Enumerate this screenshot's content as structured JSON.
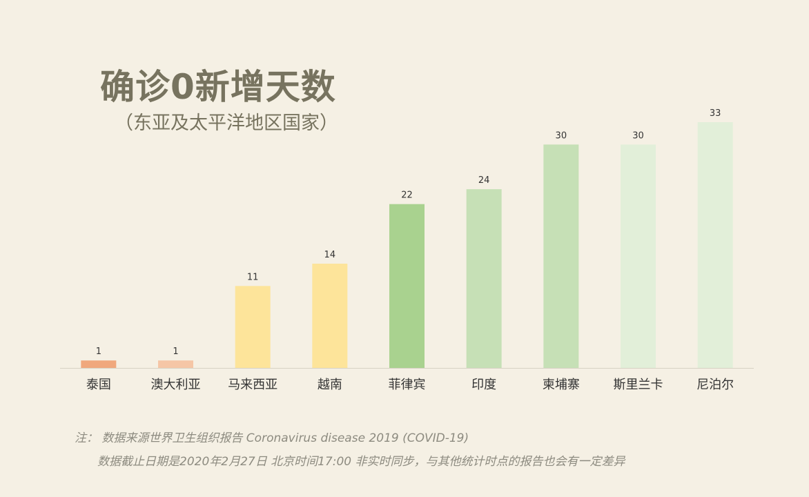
{
  "title": "确诊0新增天数",
  "subtitle": "（东亚及太平洋地区国家）",
  "chart_data": {
    "type": "bar",
    "title": "确诊0新增天数",
    "subtitle": "（东亚及太平洋地区国家）",
    "categories": [
      "泰国",
      "澳大利亚",
      "马来西亚",
      "越南",
      "菲律宾",
      "印度",
      "柬埔寨",
      "斯里兰卡",
      "尼泊尔"
    ],
    "values": [
      1,
      1,
      11,
      14,
      22,
      24,
      30,
      30,
      33
    ],
    "colors": [
      "#f0a87d",
      "#f5c6a6",
      "#fde49a",
      "#fde49a",
      "#a9d28f",
      "#c6e0b6",
      "#c6e0b6",
      "#e2efd9",
      "#e2efd9"
    ],
    "ylim": [
      0,
      33
    ],
    "grid": false,
    "data_labels": true,
    "xlabel": "",
    "ylabel": ""
  },
  "notes": {
    "line1": "注：  数据来源世界卫生组织报告 Coronavirus disease 2019 (COVID-19)",
    "line2": "数据截止日期是2020年2月27日 北京时间17:00 非实时同步，与其他统计时点的报告也会有一定差异"
  },
  "colors": {
    "background": "#f5f0e4",
    "title": "#77735f",
    "axis": "#d6d1c4",
    "label": "#333333",
    "note": "#8d8b80"
  }
}
